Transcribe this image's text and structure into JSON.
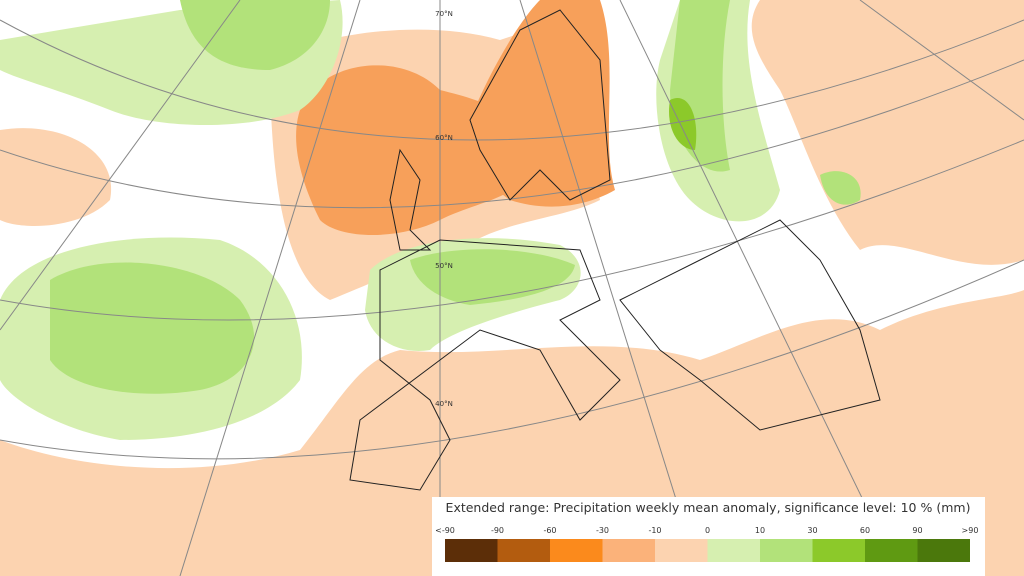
{
  "map": {
    "lat_labels": [
      "70°N",
      "60°N",
      "50°N",
      "40°N"
    ]
  },
  "legend": {
    "title": "Extended range: Precipitation weekly mean anomaly, significance level: 10 % (mm)",
    "labels": [
      "<-90",
      "-90",
      "-60",
      "-30",
      "-10",
      "0",
      "10",
      "30",
      "60",
      "90",
      ">90"
    ],
    "colors": [
      "#5c2e08",
      "#b35c0f",
      "#fb8a1c",
      "#fbb27a",
      "#fcd3b0",
      "#d6efb0",
      "#b2e27a",
      "#8cc92a",
      "#5f9a12",
      "#4b780c"
    ]
  }
}
